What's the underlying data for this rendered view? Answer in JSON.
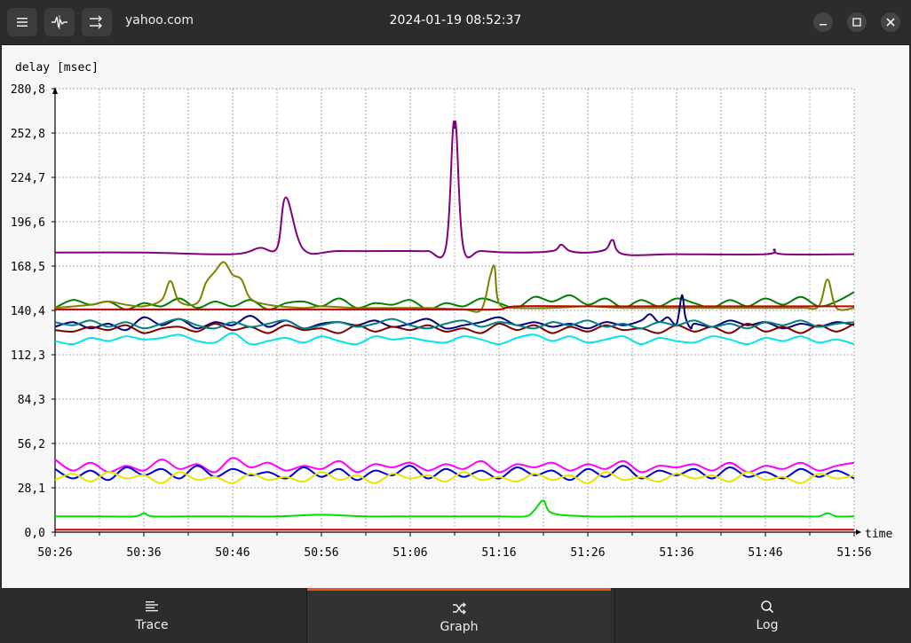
{
  "window": {
    "host": "yahoo.com",
    "timestamp": "2024-01-19 08:52:37"
  },
  "header_icons": [
    "hamburger-menu-icon",
    "graph-settings-icon",
    "sort-icon"
  ],
  "window_controls": [
    "minimize-icon",
    "maximize-icon",
    "close-icon"
  ],
  "tabs": [
    {
      "label": "Trace",
      "icon": "list-icon",
      "active": false
    },
    {
      "label": "Graph",
      "icon": "shuffle-icon",
      "active": true
    },
    {
      "label": "Log",
      "icon": "search-icon",
      "active": false
    }
  ],
  "chart_data": {
    "type": "line",
    "ylabel": "delay [msec]",
    "xlabel": "time",
    "yticks": [
      "0,0",
      "28,1",
      "56,2",
      "84,3",
      "112,3",
      "140,4",
      "168,5",
      "196,6",
      "224,7",
      "252,8",
      "280,8"
    ],
    "xticks": [
      "50:26",
      "50:36",
      "50:46",
      "50:56",
      "51:06",
      "51:16",
      "51:26",
      "51:36",
      "51:46",
      "51:56"
    ],
    "ylim": [
      0,
      280.8
    ],
    "xlim": [
      0,
      90
    ],
    "grid": true,
    "series": [
      {
        "color": "#800080",
        "x": [
          0,
          10,
          20,
          23,
          25,
          26,
          28,
          32,
          40,
          42,
          44,
          44.8,
          45,
          45.2,
          46,
          48,
          52,
          56,
          57,
          58,
          60,
          62,
          62.8,
          64,
          70,
          80,
          81,
          82,
          90
        ],
        "y": [
          177,
          177,
          176,
          180,
          180,
          212,
          179,
          178,
          178,
          178,
          180,
          254,
          256,
          254,
          180,
          178,
          177,
          178,
          182,
          178,
          177,
          179,
          185,
          176,
          176,
          176,
          179,
          176,
          176
        ]
      },
      {
        "color": "#008000",
        "x": [
          0,
          2,
          4,
          6,
          8,
          10,
          12,
          14,
          16,
          18,
          20,
          22,
          24,
          26,
          28,
          30,
          32,
          34,
          36,
          38,
          40,
          42,
          44,
          46,
          48,
          50,
          52,
          54,
          56,
          58,
          60,
          62,
          64,
          66,
          68,
          70,
          72,
          74,
          76,
          78,
          80,
          82,
          84,
          86,
          88,
          90
        ],
        "y": [
          142,
          147,
          144,
          146,
          141,
          145,
          143,
          148,
          142,
          146,
          143,
          147,
          141,
          145,
          146,
          143,
          148,
          142,
          145,
          144,
          147,
          141,
          145,
          143,
          148,
          145,
          142,
          149,
          146,
          150,
          144,
          148,
          142,
          147,
          143,
          148,
          145,
          142,
          147,
          143,
          148,
          144,
          149,
          143,
          146,
          152
        ]
      },
      {
        "color": "#808000",
        "x": [
          0,
          4,
          6,
          8,
          10,
          12,
          13,
          14,
          16,
          17,
          18,
          19,
          20,
          21,
          22,
          24,
          28,
          30,
          34,
          38,
          42,
          46,
          48,
          49,
          49.5,
          50,
          52,
          56,
          60,
          64,
          70,
          78,
          84,
          86,
          87,
          88,
          90
        ],
        "y": [
          142,
          144,
          146,
          144,
          143,
          147,
          159,
          146,
          145,
          158,
          165,
          171,
          163,
          160,
          148,
          144,
          142,
          143,
          142,
          142,
          142,
          141,
          141,
          162,
          168,
          145,
          142,
          142,
          143,
          142,
          142,
          142,
          142,
          143,
          160,
          142,
          142
        ]
      },
      {
        "color": "#c00000",
        "x": [
          0,
          10,
          20,
          30,
          40,
          46,
          50,
          52,
          60,
          70,
          80,
          90
        ],
        "y": [
          141,
          141,
          141,
          141,
          141,
          141,
          141,
          143,
          143,
          143,
          143,
          143
        ]
      },
      {
        "color": "#000080",
        "x": [
          0,
          2,
          4,
          6,
          8,
          10,
          12,
          14,
          16,
          18,
          20,
          22,
          24,
          26,
          28,
          30,
          32,
          34,
          36,
          38,
          40,
          42,
          44,
          46,
          48,
          50,
          52,
          54,
          56,
          58,
          60,
          62,
          64,
          66,
          67,
          68,
          69,
          70,
          70.6,
          71,
          71.6,
          72,
          74,
          76,
          78,
          80,
          82,
          84,
          86,
          88,
          90
        ],
        "y": [
          130,
          133,
          129,
          132,
          128,
          136,
          131,
          135,
          129,
          133,
          131,
          137,
          130,
          134,
          129,
          132,
          133,
          131,
          134,
          130,
          132,
          135,
          129,
          131,
          133,
          136,
          131,
          133,
          130,
          132,
          129,
          133,
          131,
          134,
          138,
          133,
          136,
          132,
          150,
          136,
          129,
          132,
          130,
          134,
          131,
          133,
          129,
          132,
          130,
          133,
          131
        ]
      },
      {
        "color": "#800000",
        "x": [
          0,
          2,
          4,
          6,
          8,
          10,
          12,
          14,
          16,
          18,
          20,
          22,
          24,
          26,
          28,
          30,
          32,
          34,
          36,
          38,
          40,
          42,
          44,
          46,
          48,
          50,
          52,
          54,
          56,
          58,
          60,
          62,
          64,
          66,
          68,
          70,
          72,
          74,
          76,
          78,
          80,
          82,
          84,
          86,
          88,
          90
        ],
        "y": [
          128,
          127,
          130,
          128,
          131,
          126,
          129,
          130,
          127,
          132,
          128,
          130,
          126,
          131,
          128,
          129,
          126,
          131,
          127,
          130,
          128,
          131,
          127,
          129,
          126,
          132,
          128,
          131,
          126,
          130,
          127,
          131,
          128,
          129,
          126,
          131,
          127,
          130,
          126,
          132,
          127,
          130,
          126,
          131,
          127,
          132
        ]
      },
      {
        "color": "#008080",
        "x": [
          0,
          2,
          4,
          6,
          8,
          10,
          12,
          14,
          16,
          18,
          20,
          22,
          24,
          26,
          28,
          30,
          32,
          34,
          36,
          38,
          40,
          42,
          44,
          46,
          48,
          50,
          52,
          54,
          56,
          58,
          60,
          62,
          64,
          66,
          68,
          70,
          72,
          74,
          76,
          78,
          80,
          82,
          84,
          86,
          88,
          90
        ],
        "y": [
          133,
          131,
          134,
          130,
          133,
          129,
          132,
          135,
          131,
          129,
          133,
          130,
          132,
          134,
          129,
          131,
          133,
          130,
          132,
          135,
          131,
          129,
          132,
          134,
          130,
          133,
          131,
          129,
          133,
          131,
          134,
          130,
          132,
          129,
          133,
          131,
          134,
          130,
          132,
          129,
          133,
          131,
          134,
          130,
          132,
          133
        ]
      },
      {
        "color": "#00e5e5",
        "x": [
          0,
          2,
          4,
          6,
          8,
          10,
          12,
          14,
          16,
          18,
          20,
          22,
          24,
          26,
          28,
          30,
          32,
          34,
          36,
          38,
          40,
          42,
          44,
          46,
          48,
          50,
          52,
          54,
          56,
          58,
          60,
          62,
          64,
          66,
          68,
          70,
          72,
          74,
          76,
          78,
          80,
          82,
          84,
          86,
          88,
          90
        ],
        "y": [
          121,
          119,
          123,
          121,
          124,
          122,
          123,
          125,
          121,
          120,
          126,
          119,
          121,
          123,
          120,
          124,
          121,
          119,
          124,
          122,
          123,
          121,
          120,
          124,
          122,
          119,
          123,
          125,
          121,
          124,
          120,
          122,
          124,
          119,
          123,
          121,
          120,
          124,
          122,
          119,
          123,
          121,
          124,
          120,
          122,
          119
        ]
      },
      {
        "color": "#ff00ff",
        "x": [
          0,
          2,
          4,
          6,
          8,
          10,
          12,
          14,
          16,
          18,
          20,
          22,
          24,
          26,
          28,
          30,
          32,
          34,
          36,
          38,
          40,
          42,
          44,
          46,
          48,
          50,
          52,
          54,
          56,
          58,
          60,
          62,
          64,
          66,
          68,
          70,
          72,
          74,
          76,
          78,
          80,
          82,
          84,
          86,
          88,
          90
        ],
        "y": [
          46,
          39,
          44,
          38,
          42,
          39,
          46,
          40,
          43,
          38,
          47,
          41,
          44,
          39,
          42,
          40,
          45,
          38,
          43,
          41,
          44,
          39,
          43,
          40,
          45,
          38,
          43,
          41,
          44,
          39,
          43,
          40,
          45,
          38,
          42,
          41,
          43,
          39,
          44,
          38,
          42,
          40,
          44,
          39,
          42,
          44
        ]
      },
      {
        "color": "#0000cc",
        "x": [
          0,
          2,
          4,
          6,
          8,
          10,
          12,
          14,
          16,
          18,
          20,
          22,
          24,
          26,
          28,
          30,
          32,
          34,
          36,
          38,
          40,
          42,
          44,
          46,
          48,
          50,
          52,
          54,
          56,
          58,
          60,
          62,
          64,
          66,
          68,
          70,
          72,
          74,
          76,
          78,
          80,
          82,
          84,
          86,
          88,
          90
        ],
        "y": [
          40,
          34,
          39,
          33,
          41,
          36,
          40,
          34,
          42,
          35,
          40,
          36,
          38,
          34,
          41,
          35,
          40,
          33,
          39,
          36,
          42,
          34,
          40,
          35,
          39,
          34,
          41,
          36,
          39,
          33,
          40,
          35,
          42,
          34,
          39,
          36,
          40,
          34,
          41,
          35,
          38,
          34,
          40,
          35,
          39,
          34
        ]
      },
      {
        "color": "#e5e500",
        "x": [
          0,
          2,
          4,
          6,
          8,
          10,
          12,
          14,
          16,
          18,
          20,
          22,
          24,
          26,
          28,
          30,
          32,
          34,
          36,
          38,
          40,
          42,
          44,
          46,
          48,
          50,
          52,
          54,
          56,
          58,
          60,
          62,
          64,
          66,
          68,
          70,
          72,
          74,
          76,
          78,
          80,
          82,
          84,
          86,
          88,
          90
        ],
        "y": [
          33,
          37,
          32,
          38,
          34,
          36,
          31,
          38,
          33,
          35,
          31,
          37,
          33,
          35,
          32,
          38,
          33,
          36,
          31,
          37,
          34,
          36,
          32,
          38,
          33,
          35,
          32,
          37,
          33,
          36,
          31,
          38,
          33,
          35,
          32,
          37,
          34,
          36,
          32,
          38,
          33,
          35,
          31,
          37,
          34,
          36
        ]
      },
      {
        "color": "#00e000",
        "x": [
          0,
          5,
          9,
          10,
          11,
          15,
          20,
          25,
          30,
          35,
          40,
          45,
          50,
          53,
          54,
          55,
          56,
          60,
          65,
          70,
          75,
          80,
          84,
          86,
          87,
          88,
          90
        ],
        "y": [
          10,
          10,
          10,
          12,
          10,
          10,
          10,
          10,
          11,
          10,
          10,
          10,
          10,
          10,
          14,
          20,
          12,
          10,
          10,
          10,
          10,
          10,
          10,
          10,
          12,
          10,
          10
        ]
      },
      {
        "color": "#d00000",
        "x": [
          0,
          20,
          40,
          60,
          80,
          90
        ],
        "y": [
          1.5,
          1.5,
          1.5,
          1.5,
          1.5,
          1.5
        ]
      }
    ]
  }
}
